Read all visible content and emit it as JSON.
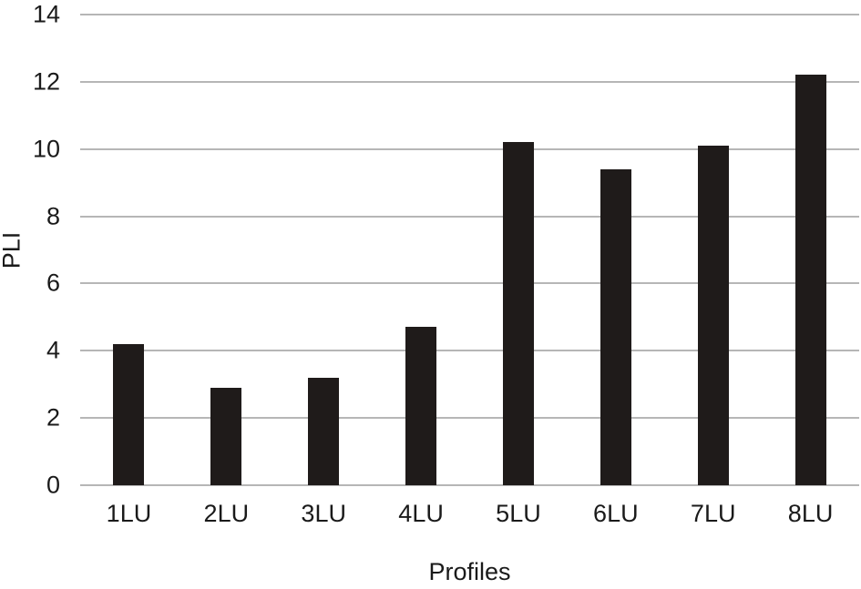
{
  "chart_data": {
    "type": "bar",
    "categories": [
      "1LU",
      "2LU",
      "3LU",
      "4LU",
      "5LU",
      "6LU",
      "7LU",
      "8LU"
    ],
    "values": [
      4.2,
      2.9,
      3.2,
      4.7,
      10.2,
      9.4,
      10.1,
      12.2
    ],
    "title": "",
    "xlabel": "Profiles",
    "ylabel": "PLI",
    "ylim": [
      0,
      14
    ],
    "ytick_step": 2,
    "ytick_labels": [
      "0",
      "2",
      "4",
      "6",
      "8",
      "10",
      "12",
      "14"
    ],
    "grid": true,
    "legend": false,
    "bar_color": "#1f1b1a",
    "grid_color": "#b6b6b6",
    "background_color": "#ffffff",
    "text_color": "#1a1a1a"
  }
}
